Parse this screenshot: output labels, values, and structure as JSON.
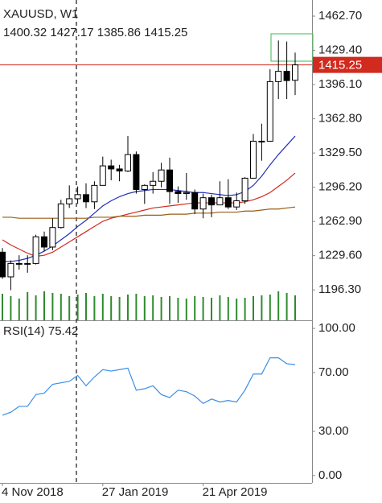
{
  "chart_data": [
    {
      "type": "candlestick",
      "title": "XAUUSD, W1",
      "ohlc_text": "1400.32 1427.17 1385.86 1415.25",
      "categories": [
        "4 Nov 2018",
        null,
        null,
        null,
        null,
        null,
        null,
        null,
        null,
        null,
        null,
        null,
        "27 Jan 2019",
        null,
        null,
        null,
        null,
        null,
        null,
        null,
        null,
        null,
        null,
        null,
        "21 Apr 2019",
        null,
        null,
        null,
        null,
        null,
        null,
        null,
        null,
        null,
        null,
        null
      ],
      "open": [
        1233,
        1209,
        1222,
        1222,
        1222,
        1248,
        1238,
        1257,
        1280,
        1285,
        1289,
        1282,
        1298,
        1317,
        1314,
        1312,
        1328,
        1294,
        1298,
        1302,
        1313,
        1292,
        1290,
        1291,
        1275,
        1286,
        1279,
        1286,
        1277,
        1283,
        1305,
        1341,
        1341,
        1399,
        1409,
        1400.32
      ],
      "high": [
        1237,
        1225,
        1230,
        1230,
        1250,
        1253,
        1266,
        1284,
        1298,
        1297,
        1300,
        1302,
        1326,
        1323,
        1318,
        1346,
        1331,
        1299,
        1311,
        1320,
        1325,
        1297,
        1310,
        1294,
        1290,
        1289,
        1302,
        1304,
        1291,
        1306,
        1348,
        1358,
        1411,
        1439,
        1438,
        1427.17
      ],
      "low": [
        1207,
        1196,
        1216,
        1213,
        1221,
        1234,
        1235,
        1256,
        1276,
        1280,
        1276,
        1275,
        1298,
        1303,
        1302,
        1311,
        1290,
        1280,
        1290,
        1296,
        1280,
        1281,
        1284,
        1270,
        1266,
        1267,
        1279,
        1275,
        1274,
        1280,
        1305,
        1322,
        1341,
        1382,
        1382,
        1385.86
      ],
      "close": [
        1209,
        1222,
        1222,
        1222,
        1248,
        1238,
        1257,
        1280,
        1285,
        1289,
        1282,
        1298,
        1317,
        1314,
        1312,
        1328,
        1294,
        1298,
        1302,
        1313,
        1292,
        1290,
        1291,
        1275,
        1286,
        1279,
        1286,
        1277,
        1283,
        1305,
        1341,
        1341,
        1399,
        1409,
        1400,
        1415.25
      ],
      "up_color": "#ffffff",
      "down_color": "#000000",
      "outline_color": "#000000",
      "series": [
        {
          "color": "#1f2fb8",
          "values": [
            1224,
            1224,
            1225,
            1227,
            1230,
            1234,
            1239,
            1245,
            1251,
            1258,
            1264,
            1271,
            1278,
            1283,
            1287,
            1290,
            1292,
            1293,
            1294,
            1294,
            1294,
            1293,
            1292,
            1291,
            1291,
            1290,
            1289,
            1288,
            1289,
            1292,
            1298,
            1307,
            1318,
            1328,
            1337,
            1346
          ]
        },
        {
          "color": "#d12a1e",
          "values": [
            1245,
            1240,
            1236,
            1232,
            1229,
            1230,
            1233,
            1238,
            1243,
            1248,
            1253,
            1258,
            1263,
            1266,
            1268,
            1270,
            1272,
            1274,
            1276,
            1277,
            1278,
            1279,
            1280,
            1281,
            1281,
            1281,
            1281,
            1281,
            1281,
            1282,
            1284,
            1287,
            1291,
            1297,
            1303,
            1310
          ]
        },
        {
          "color": "#9a5b12",
          "values": [
            1267,
            1267,
            1266,
            1266,
            1266,
            1266,
            1266,
            1266,
            1266,
            1266,
            1266,
            1267,
            1267,
            1267,
            1268,
            1268,
            1268,
            1269,
            1269,
            1269,
            1270,
            1270,
            1270,
            1271,
            1271,
            1271,
            1272,
            1272,
            1272,
            1273,
            1273,
            1274,
            1275,
            1275,
            1276,
            1277
          ]
        }
      ],
      "volume": {
        "color": "#2e8b2e",
        "ylim": [
          0,
          100
        ],
        "values": [
          33,
          30,
          27,
          35,
          31,
          36,
          34,
          33,
          30,
          32,
          34,
          30,
          33,
          30,
          29,
          32,
          33,
          30,
          31,
          29,
          30,
          28,
          27,
          30,
          29,
          28,
          31,
          29,
          27,
          28,
          30,
          31,
          32,
          36,
          34,
          31
        ]
      },
      "current_price": 1415.25,
      "current_price_color": "#d12a1e",
      "ylim": [
        1166.7,
        1478.4
      ],
      "yticks": [
        {
          "value": 1462.7,
          "label": "1462.70"
        },
        {
          "value": 1429.4,
          "label": "1429.40"
        },
        {
          "value": 1396.1,
          "label": "1396.10"
        },
        {
          "value": 1362.8,
          "label": "1362.80"
        },
        {
          "value": 1329.5,
          "label": "1329.50"
        },
        {
          "value": 1296.2,
          "label": "1296.20"
        },
        {
          "value": 1262.9,
          "label": "1262.90"
        },
        {
          "value": 1229.6,
          "label": "1229.60"
        },
        {
          "value": 1196.3,
          "label": "1196.30"
        }
      ]
    },
    {
      "type": "line",
      "title": "RSI(14) 75.42",
      "color": "#3a8ee6",
      "values": [
        41,
        43,
        47,
        47,
        55,
        56,
        62,
        63,
        64,
        68,
        61,
        67,
        72,
        71,
        72,
        73,
        58,
        59,
        61,
        55,
        53,
        58,
        57,
        54,
        49,
        52,
        50,
        51,
        50,
        58,
        69,
        69,
        80,
        80,
        76,
        75.42
      ],
      "ylim": [
        -5,
        105.5
      ],
      "yticks": [
        {
          "value": 100,
          "label": "100.00"
        },
        {
          "value": 70,
          "label": "70.00"
        },
        {
          "value": 30,
          "label": "30.00"
        },
        {
          "value": 0,
          "label": "0.00"
        }
      ]
    }
  ]
}
